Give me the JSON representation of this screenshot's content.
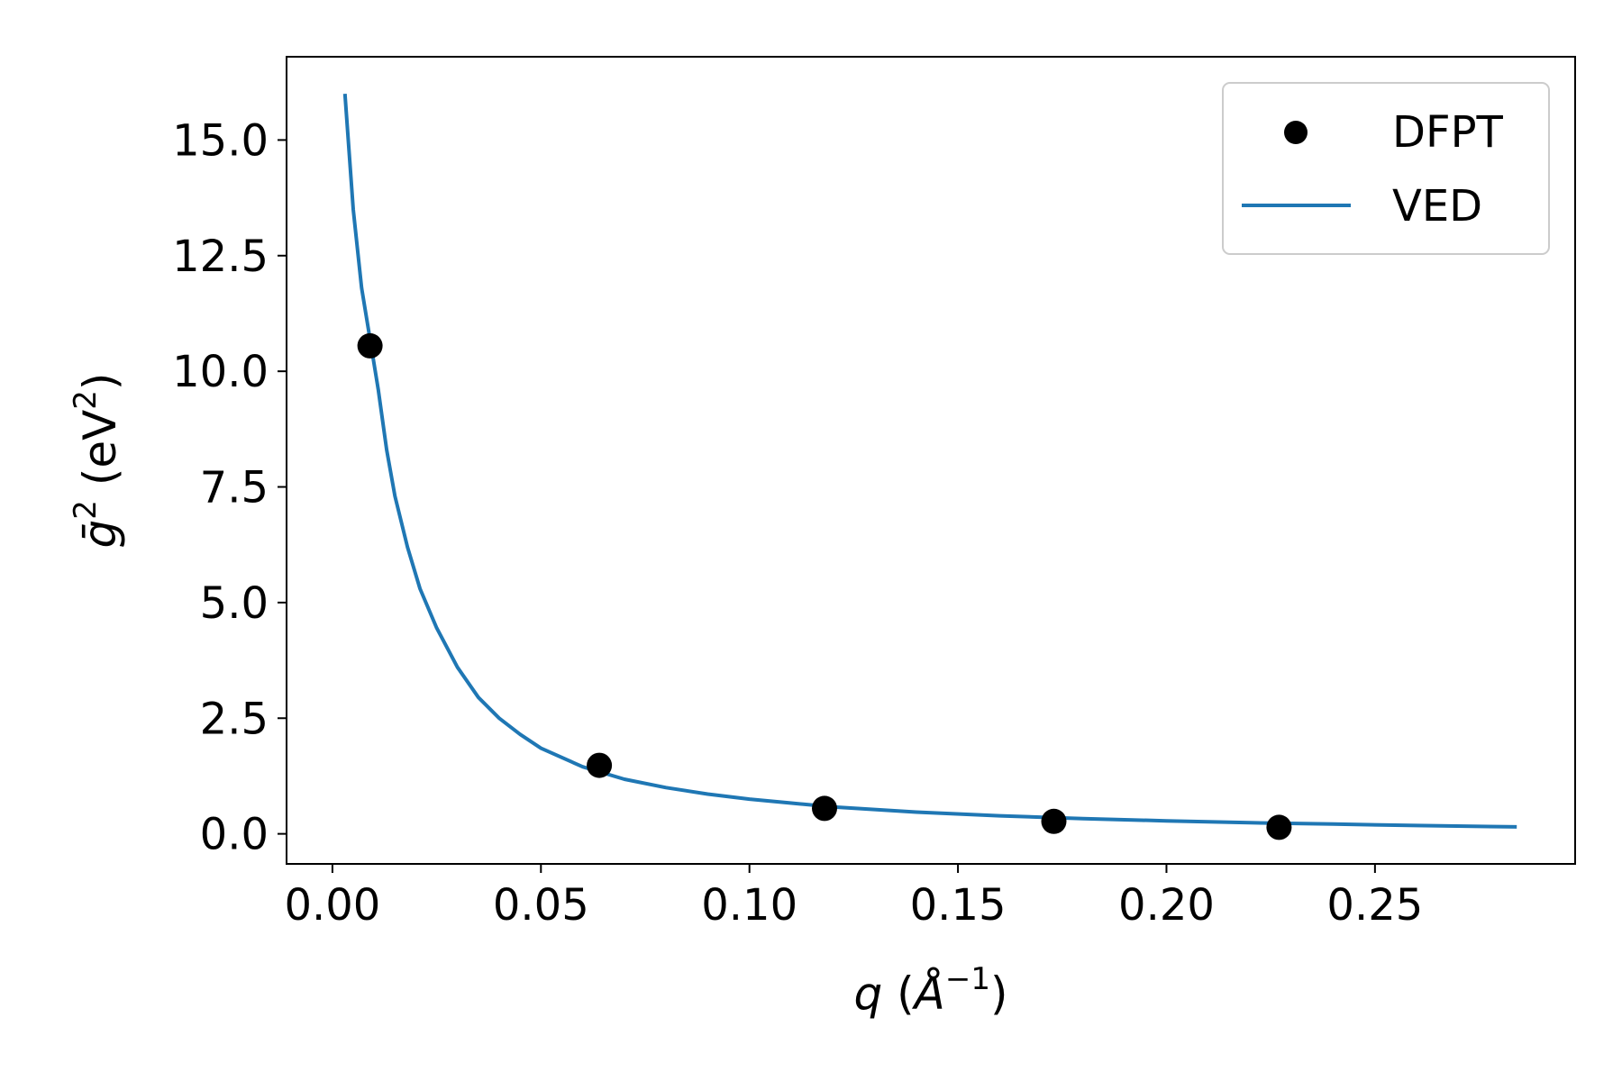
{
  "chart_data": {
    "type": "scatter",
    "xlabel": {
      "var": "q",
      "unit_pre": " (",
      "unit": "Å",
      "exp": "−1",
      "unit_post": ")"
    },
    "ylabel": {
      "sym": "ḡ",
      "exp": "2",
      "unit_pre": " (eV",
      "unit_exp": "2",
      "unit_post": ")"
    },
    "xlim": [
      -0.011,
      0.298
    ],
    "ylim": [
      -0.65,
      16.8
    ],
    "xticks": [
      0.0,
      0.05,
      0.1,
      0.15,
      0.2,
      0.25
    ],
    "xtick_labels": [
      "0.00",
      "0.05",
      "0.10",
      "0.15",
      "0.20",
      "0.25"
    ],
    "yticks": [
      0.0,
      2.5,
      5.0,
      7.5,
      10.0,
      12.5,
      15.0
    ],
    "ytick_labels": [
      "0.0",
      "2.5",
      "5.0",
      "7.5",
      "10.0",
      "12.5",
      "15.0"
    ],
    "grid": false,
    "legend_position": "top-right",
    "series": [
      {
        "name": "DFPT",
        "kind": "scatter",
        "color": "#000000",
        "x": [
          0.009,
          0.064,
          0.118,
          0.173,
          0.227
        ],
        "y": [
          10.55,
          1.48,
          0.55,
          0.27,
          0.14
        ]
      },
      {
        "name": "VED",
        "kind": "line",
        "color": "#1f77b4",
        "x": [
          0.003,
          0.005,
          0.007,
          0.009,
          0.011,
          0.013,
          0.015,
          0.018,
          0.021,
          0.025,
          0.03,
          0.035,
          0.04,
          0.045,
          0.05,
          0.06,
          0.07,
          0.08,
          0.09,
          0.1,
          0.12,
          0.14,
          0.16,
          0.18,
          0.2,
          0.22,
          0.24,
          0.26,
          0.284
        ],
        "y": [
          16.0,
          13.5,
          11.8,
          10.7,
          9.6,
          8.3,
          7.3,
          6.2,
          5.3,
          4.45,
          3.6,
          2.95,
          2.5,
          2.15,
          1.85,
          1.45,
          1.18,
          1.0,
          0.86,
          0.75,
          0.58,
          0.47,
          0.39,
          0.33,
          0.28,
          0.24,
          0.21,
          0.18,
          0.15
        ]
      }
    ]
  }
}
